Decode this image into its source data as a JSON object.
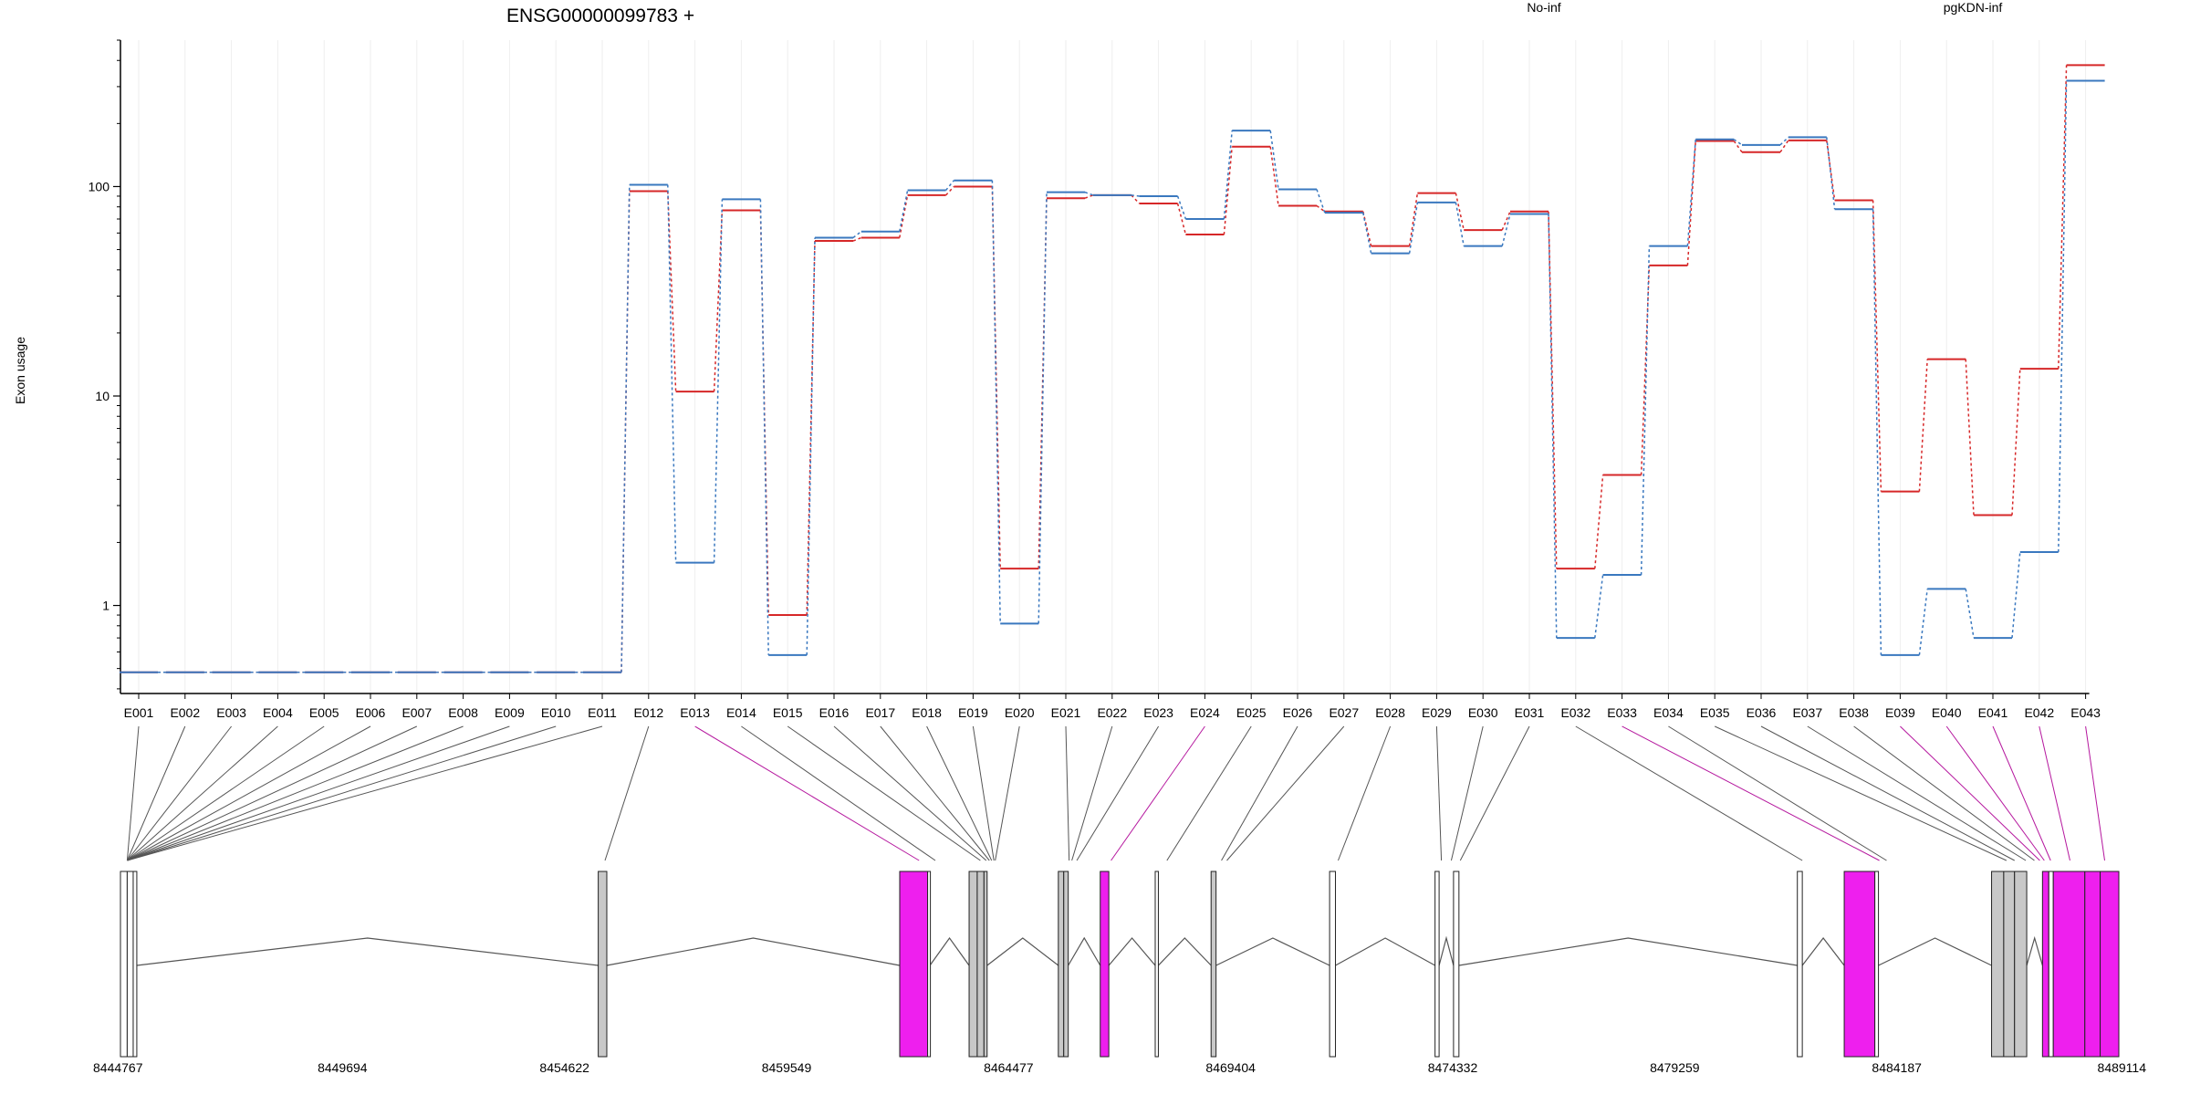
{
  "chart_data": {
    "type": "line",
    "title": "ENSG00000099783 +",
    "ylabel": "Exon usage",
    "xlabel": "",
    "y_scale": "log",
    "ylim": [
      0.38,
      500
    ],
    "y_ticks": [
      {
        "value": 1,
        "label": "1"
      },
      {
        "value": 10,
        "label": "10"
      },
      {
        "value": 100,
        "label": "100"
      }
    ],
    "grid": "vertical, light",
    "legend_placement": "top",
    "categories": [
      "E001",
      "E002",
      "E003",
      "E004",
      "E005",
      "E006",
      "E007",
      "E008",
      "E009",
      "E010",
      "E011",
      "E012",
      "E013",
      "E014",
      "E015",
      "E016",
      "E017",
      "E018",
      "E019",
      "E020",
      "E021",
      "E022",
      "E023",
      "E024",
      "E025",
      "E026",
      "E027",
      "E028",
      "E029",
      "E030",
      "E031",
      "E032",
      "E033",
      "E034",
      "E035",
      "E036",
      "E037",
      "E038",
      "E039",
      "E040",
      "E041",
      "E042",
      "E043"
    ],
    "series": [
      {
        "name": "No-inf",
        "color": "#d62728",
        "values": [
          0.48,
          0.48,
          0.48,
          0.48,
          0.48,
          0.48,
          0.48,
          0.48,
          0.48,
          0.48,
          0.48,
          95,
          10.5,
          77,
          0.9,
          55,
          57,
          91,
          100,
          1.5,
          88,
          91,
          83,
          59,
          155,
          81,
          76,
          52,
          93,
          62,
          76,
          1.5,
          4.2,
          42,
          165,
          146,
          166,
          86,
          3.5,
          15,
          2.7,
          13.5,
          380
        ]
      },
      {
        "name": "pgKDN-inf",
        "color": "#3a78bf",
        "values": [
          0.48,
          0.48,
          0.48,
          0.48,
          0.48,
          0.48,
          0.48,
          0.48,
          0.48,
          0.48,
          0.48,
          102,
          1.6,
          87,
          0.58,
          57,
          61,
          96,
          107,
          0.82,
          94,
          91,
          90,
          70,
          185,
          97,
          75,
          48,
          84,
          52,
          74,
          0.7,
          1.4,
          52,
          168,
          158,
          172,
          78,
          0.58,
          1.2,
          0.7,
          1.8,
          320
        ]
      }
    ],
    "gene_track": {
      "coord_range": [
        8444767,
        8489114
      ],
      "coord_ticks": [
        "8444767",
        "8449694",
        "8454622",
        "8459549",
        "8464477",
        "8469404",
        "8474332",
        "8479259",
        "8484187",
        "8489114"
      ],
      "exon_connectors": [
        {
          "exon": "E001",
          "target": 8444917,
          "color": "#555555"
        },
        {
          "exon": "E002",
          "target": 8444917,
          "color": "#555555"
        },
        {
          "exon": "E003",
          "target": 8444917,
          "color": "#555555"
        },
        {
          "exon": "E004",
          "target": 8444917,
          "color": "#555555"
        },
        {
          "exon": "E005",
          "target": 8444917,
          "color": "#555555"
        },
        {
          "exon": "E006",
          "target": 8444917,
          "color": "#555555"
        },
        {
          "exon": "E007",
          "target": 8444917,
          "color": "#555555"
        },
        {
          "exon": "E008",
          "target": 8444917,
          "color": "#555555"
        },
        {
          "exon": "E009",
          "target": 8444917,
          "color": "#555555"
        },
        {
          "exon": "E010",
          "target": 8444917,
          "color": "#555555"
        },
        {
          "exon": "E011",
          "target": 8444917,
          "color": "#555555"
        },
        {
          "exon": "E012",
          "target": 8455520,
          "color": "#555555"
        },
        {
          "exon": "E013",
          "target": 8462490,
          "color": "#b5179e"
        },
        {
          "exon": "E014",
          "target": 8462850,
          "color": "#555555"
        },
        {
          "exon": "E015",
          "target": 8463850,
          "color": "#555555"
        },
        {
          "exon": "E016",
          "target": 8463980,
          "color": "#555555"
        },
        {
          "exon": "E017",
          "target": 8464050,
          "color": "#555555"
        },
        {
          "exon": "E018",
          "target": 8464100,
          "color": "#555555"
        },
        {
          "exon": "E019",
          "target": 8464150,
          "color": "#555555"
        },
        {
          "exon": "E020",
          "target": 8464180,
          "color": "#555555"
        },
        {
          "exon": "E021",
          "target": 8465820,
          "color": "#555555"
        },
        {
          "exon": "E022",
          "target": 8465880,
          "color": "#555555"
        },
        {
          "exon": "E023",
          "target": 8465990,
          "color": "#555555"
        },
        {
          "exon": "E024",
          "target": 8466750,
          "color": "#b5179e"
        },
        {
          "exon": "E025",
          "target": 8467990,
          "color": "#555555"
        },
        {
          "exon": "E026",
          "target": 8469200,
          "color": "#555555"
        },
        {
          "exon": "E027",
          "target": 8469320,
          "color": "#555555"
        },
        {
          "exon": "E028",
          "target": 8471790,
          "color": "#555555"
        },
        {
          "exon": "E029",
          "target": 8474080,
          "color": "#555555"
        },
        {
          "exon": "E030",
          "target": 8474300,
          "color": "#555555"
        },
        {
          "exon": "E031",
          "target": 8474500,
          "color": "#555555"
        },
        {
          "exon": "E032",
          "target": 8482090,
          "color": "#555555"
        },
        {
          "exon": "E033",
          "target": 8483800,
          "color": "#b5179e"
        },
        {
          "exon": "E034",
          "target": 8483960,
          "color": "#555555"
        },
        {
          "exon": "E035",
          "target": 8486620,
          "color": "#555555"
        },
        {
          "exon": "E036",
          "target": 8486800,
          "color": "#555555"
        },
        {
          "exon": "E037",
          "target": 8487050,
          "color": "#555555"
        },
        {
          "exon": "E038",
          "target": 8487240,
          "color": "#555555"
        },
        {
          "exon": "E039",
          "target": 8487360,
          "color": "#b5179e"
        },
        {
          "exon": "E040",
          "target": 8487460,
          "color": "#b5179e"
        },
        {
          "exon": "E041",
          "target": 8487600,
          "color": "#b5179e"
        },
        {
          "exon": "E042",
          "target": 8488030,
          "color": "#b5179e"
        },
        {
          "exon": "E043",
          "target": 8488800,
          "color": "#b5179e"
        }
      ],
      "exon_blocks": [
        {
          "start": 8444767,
          "end": 8444917,
          "fill": "#ffffff"
        },
        {
          "start": 8444917,
          "end": 8445050,
          "fill": "#ffffff"
        },
        {
          "start": 8445050,
          "end": 8445130,
          "fill": "#ffffff"
        },
        {
          "start": 8455370,
          "end": 8455560,
          "fill": "#c8c8c8"
        },
        {
          "start": 8462060,
          "end": 8462680,
          "fill": "#ee1fee"
        },
        {
          "start": 8462680,
          "end": 8462730,
          "fill": "#ffffff"
        },
        {
          "start": 8463600,
          "end": 8463780,
          "fill": "#c8c8c8"
        },
        {
          "start": 8463780,
          "end": 8463930,
          "fill": "#c8c8c8"
        },
        {
          "start": 8463930,
          "end": 8464000,
          "fill": "#c8c8c8"
        },
        {
          "start": 8465580,
          "end": 8465700,
          "fill": "#c8c8c8"
        },
        {
          "start": 8465700,
          "end": 8465800,
          "fill": "#c8c8c8"
        },
        {
          "start": 8466510,
          "end": 8466700,
          "fill": "#ee1fee"
        },
        {
          "start": 8467730,
          "end": 8467800,
          "fill": "#ffffff"
        },
        {
          "start": 8468970,
          "end": 8469080,
          "fill": "#c8c8c8"
        },
        {
          "start": 8471600,
          "end": 8471730,
          "fill": "#ffffff"
        },
        {
          "start": 8473940,
          "end": 8474030,
          "fill": "#ffffff"
        },
        {
          "start": 8474350,
          "end": 8474470,
          "fill": "#ffffff"
        },
        {
          "start": 8481980,
          "end": 8482090,
          "fill": "#ffffff"
        },
        {
          "start": 8483020,
          "end": 8483700,
          "fill": "#ee1fee"
        },
        {
          "start": 8483700,
          "end": 8483780,
          "fill": "#ffffff"
        },
        {
          "start": 8486290,
          "end": 8486560,
          "fill": "#c8c8c8"
        },
        {
          "start": 8486560,
          "end": 8486800,
          "fill": "#c8c8c8"
        },
        {
          "start": 8486800,
          "end": 8487070,
          "fill": "#c8c8c8"
        },
        {
          "start": 8487420,
          "end": 8487560,
          "fill": "#ee1fee"
        },
        {
          "start": 8487560,
          "end": 8487660,
          "fill": "#ffffff"
        },
        {
          "start": 8487660,
          "end": 8488360,
          "fill": "#ee1fee"
        },
        {
          "start": 8488360,
          "end": 8488700,
          "fill": "#ee1fee"
        },
        {
          "start": 8488700,
          "end": 8489114,
          "fill": "#ee1fee"
        }
      ]
    }
  }
}
